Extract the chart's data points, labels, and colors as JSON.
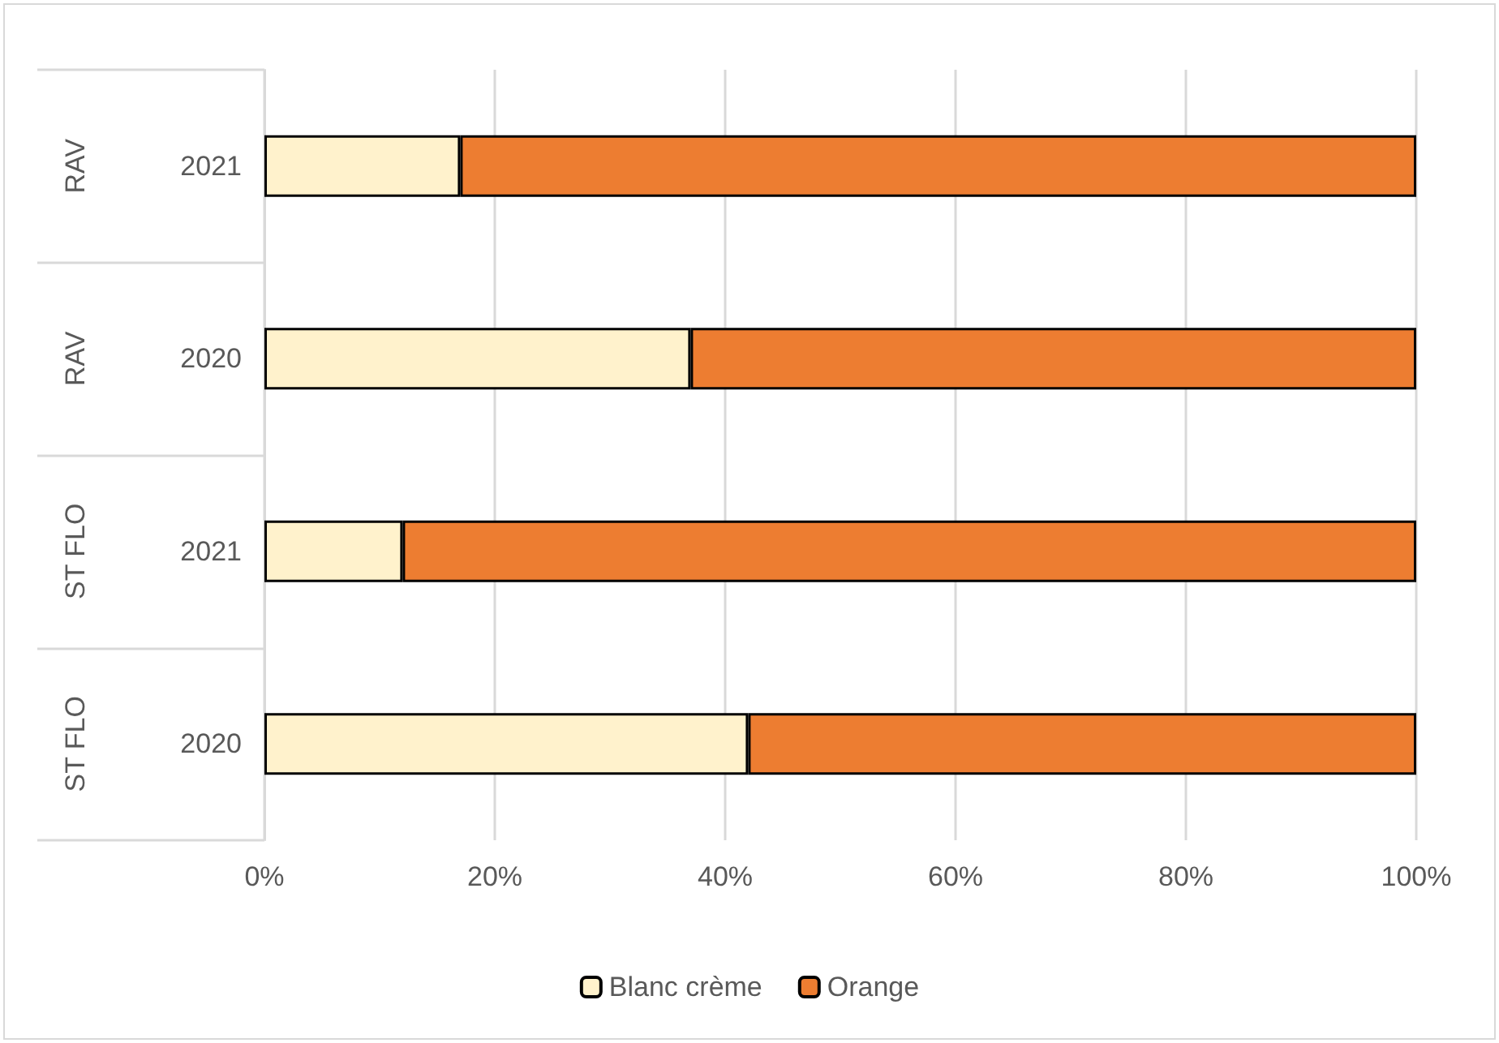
{
  "chart_data": {
    "type": "bar",
    "orientation": "horizontal",
    "stacked": true,
    "categories": [
      "RAV 2021",
      "RAV 2020",
      "ST FLO 2021",
      "ST FLO 2020"
    ],
    "series": [
      {
        "name": "Blanc crème",
        "color": "#fff2cc",
        "values": [
          17,
          37,
          12,
          42
        ]
      },
      {
        "name": "Orange",
        "color": "#ed7d31",
        "values": [
          83,
          63,
          88,
          58
        ]
      }
    ],
    "xlim": [
      0,
      100
    ],
    "xticks": [
      {
        "value": 0,
        "label": "0%"
      },
      {
        "value": 20,
        "label": "20%"
      },
      {
        "value": 40,
        "label": "40%"
      },
      {
        "value": 60,
        "label": "60%"
      },
      {
        "value": 80,
        "label": "80%"
      },
      {
        "value": 100,
        "label": "100%"
      }
    ],
    "grid": "x",
    "legend": "bottom"
  }
}
